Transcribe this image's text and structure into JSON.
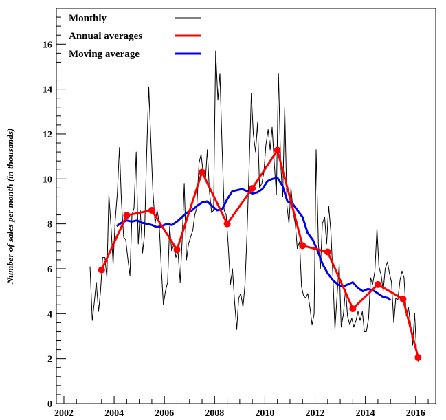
{
  "chart_data": {
    "type": "line",
    "title": "",
    "xlabel": "",
    "ylabel": "Number of sales per month (in thousands)",
    "xlim": [
      2001.7,
      2016.8
    ],
    "ylim": [
      0,
      17.6
    ],
    "xticks": [
      2002,
      2004,
      2006,
      2008,
      2010,
      2012,
      2014,
      2016
    ],
    "yticks": [
      0,
      2,
      4,
      6,
      8,
      10,
      12,
      14,
      16
    ],
    "xtick_labels": [
      "2002",
      "2004",
      "2006",
      "2008",
      "2010",
      "2012",
      "2014",
      "2016"
    ],
    "ytick_labels": [
      "0",
      "2",
      "4",
      "6",
      "8",
      "10",
      "12",
      "14",
      "16"
    ],
    "grid": false,
    "legend_position": "top-left",
    "series": [
      {
        "name": "Monthly",
        "color": "#000000",
        "x": [
          2003.04,
          2003.13,
          2003.21,
          2003.29,
          2003.38,
          2003.46,
          2003.54,
          2003.63,
          2003.71,
          2003.79,
          2003.88,
          2003.96,
          2004.04,
          2004.13,
          2004.21,
          2004.29,
          2004.38,
          2004.46,
          2004.54,
          2004.63,
          2004.71,
          2004.79,
          2004.88,
          2004.96,
          2005.04,
          2005.13,
          2005.21,
          2005.29,
          2005.38,
          2005.46,
          2005.54,
          2005.63,
          2005.71,
          2005.79,
          2005.88,
          2005.96,
          2006.04,
          2006.13,
          2006.21,
          2006.29,
          2006.38,
          2006.46,
          2006.54,
          2006.63,
          2006.71,
          2006.79,
          2006.88,
          2006.96,
          2007.04,
          2007.13,
          2007.21,
          2007.29,
          2007.38,
          2007.46,
          2007.54,
          2007.63,
          2007.71,
          2007.79,
          2007.88,
          2007.96,
          2008.04,
          2008.13,
          2008.21,
          2008.29,
          2008.38,
          2008.46,
          2008.54,
          2008.63,
          2008.71,
          2008.79,
          2008.88,
          2008.96,
          2009.04,
          2009.13,
          2009.21,
          2009.29,
          2009.38,
          2009.46,
          2009.54,
          2009.63,
          2009.71,
          2009.79,
          2009.88,
          2009.96,
          2010.04,
          2010.13,
          2010.21,
          2010.29,
          2010.38,
          2010.46,
          2010.54,
          2010.63,
          2010.71,
          2010.79,
          2010.88,
          2010.96,
          2011.04,
          2011.13,
          2011.21,
          2011.29,
          2011.38,
          2011.46,
          2011.54,
          2011.63,
          2011.71,
          2011.79,
          2011.88,
          2011.96,
          2012.04,
          2012.13,
          2012.21,
          2012.29,
          2012.38,
          2012.46,
          2012.54,
          2012.63,
          2012.71,
          2012.79,
          2012.88,
          2012.96,
          2013.04,
          2013.13,
          2013.21,
          2013.29,
          2013.38,
          2013.46,
          2013.54,
          2013.63,
          2013.71,
          2013.79,
          2013.88,
          2013.96,
          2014.04,
          2014.13,
          2014.21,
          2014.29,
          2014.38,
          2014.46,
          2014.54,
          2014.63,
          2014.71,
          2014.79,
          2014.88,
          2014.96,
          2015.04,
          2015.13,
          2015.21,
          2015.29,
          2015.38,
          2015.46,
          2015.54,
          2015.63,
          2015.71,
          2015.79,
          2015.88,
          2015.96,
          2016.04,
          2016.13
        ],
        "values": [
          6.1,
          3.7,
          4.5,
          5.4,
          4.1,
          5.0,
          6.5,
          6.5,
          5.6,
          9.3,
          7.8,
          6.2,
          8.1,
          9.4,
          11.4,
          9.0,
          7.4,
          7.3,
          6.5,
          5.7,
          8.4,
          8.7,
          11.2,
          7.1,
          8.6,
          6.7,
          7.5,
          10.9,
          14.1,
          11.7,
          9.5,
          8.0,
          8.6,
          8.1,
          6.0,
          4.4,
          5.0,
          5.4,
          7.9,
          6.8,
          7.1,
          6.5,
          6.8,
          5.4,
          7.3,
          9.8,
          6.4,
          7.1,
          7.4,
          7.7,
          8.4,
          8.7,
          10.7,
          11.1,
          10.3,
          9.9,
          11.3,
          9.5,
          8.5,
          8.6,
          15.7,
          13.5,
          14.7,
          11.7,
          8.6,
          8.4,
          7.1,
          5.3,
          6.0,
          4.6,
          3.3,
          4.7,
          4.9,
          4.3,
          5.3,
          7.6,
          10.8,
          13.8,
          12.0,
          11.2,
          12.5,
          9.6,
          9.8,
          10.3,
          11.5,
          12.2,
          11.3,
          12.3,
          10.6,
          9.3,
          14.7,
          10.7,
          9.2,
          13.2,
          8.8,
          8.0,
          9.6,
          8.5,
          8.0,
          6.9,
          7.2,
          5.2,
          4.8,
          4.7,
          4.9,
          4.3,
          3.5,
          4.0,
          11.3,
          7.1,
          6.0,
          8.0,
          8.3,
          7.1,
          8.8,
          7.6,
          5.6,
          3.3,
          4.9,
          6.2,
          3.4,
          4.0,
          5.1,
          3.9,
          3.5,
          3.8,
          3.4,
          3.7,
          4.1,
          3.7,
          4.1,
          3.2,
          3.2,
          3.8,
          5.6,
          5.3,
          5.9,
          7.8,
          6.1,
          5.7,
          5.0,
          6.0,
          6.3,
          5.8,
          5.4,
          3.6,
          4.7,
          4.6,
          5.5,
          5.9,
          5.6,
          3.9,
          4.3,
          3.6,
          2.6,
          4.0,
          2.3,
          1.8
        ]
      },
      {
        "name": "Annual averages",
        "color": "#ff0000",
        "x": [
          2003.5,
          2004.5,
          2005.5,
          2006.5,
          2007.5,
          2008.5,
          2009.5,
          2010.5,
          2011.5,
          2012.5,
          2013.5,
          2014.5,
          2015.5,
          2016.1
        ],
        "values": [
          5.95,
          8.38,
          8.6,
          6.85,
          10.3,
          8.0,
          9.58,
          11.28,
          7.03,
          6.75,
          4.22,
          5.3,
          4.65,
          2.05
        ]
      },
      {
        "name": "Moving average",
        "color": "#0000ee",
        "x": [
          2004.1,
          2004.3,
          2004.5,
          2004.7,
          2004.9,
          2005.1,
          2005.3,
          2005.5,
          2005.7,
          2005.9,
          2006.1,
          2006.3,
          2006.5,
          2006.7,
          2006.9,
          2007.1,
          2007.3,
          2007.5,
          2007.7,
          2007.9,
          2008.1,
          2008.3,
          2008.5,
          2008.7,
          2008.9,
          2009.1,
          2009.3,
          2009.5,
          2009.7,
          2009.9,
          2010.1,
          2010.3,
          2010.5,
          2010.7,
          2010.9,
          2011.1,
          2011.3,
          2011.5,
          2011.7,
          2011.9,
          2012.1,
          2012.3,
          2012.5,
          2012.7,
          2012.9,
          2013.1,
          2013.3,
          2013.5,
          2013.7,
          2013.9,
          2014.1,
          2014.3,
          2014.5,
          2014.7,
          2014.9,
          2015.0
        ],
        "values": [
          7.9,
          8.05,
          8.15,
          8.1,
          8.15,
          8.05,
          8.0,
          7.95,
          7.85,
          7.9,
          8.0,
          7.95,
          8.1,
          8.3,
          8.5,
          8.6,
          8.8,
          8.95,
          9.0,
          8.8,
          8.6,
          8.65,
          9.1,
          9.45,
          9.5,
          9.55,
          9.45,
          9.35,
          9.4,
          9.55,
          9.9,
          10.0,
          10.05,
          9.7,
          9.0,
          8.9,
          8.6,
          8.3,
          7.6,
          7.3,
          6.8,
          6.2,
          5.8,
          5.5,
          5.3,
          5.2,
          5.3,
          5.4,
          5.15,
          5.0,
          5.1,
          5.05,
          4.9,
          4.75,
          4.7,
          4.6
        ]
      }
    ]
  }
}
